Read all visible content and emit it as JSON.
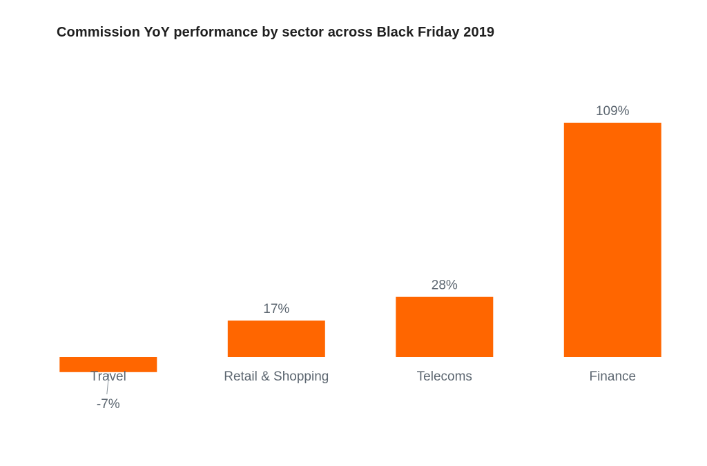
{
  "chart_data": {
    "type": "bar",
    "title": "Commission YoY performance by sector across Black Friday 2019",
    "categories": [
      "Travel",
      "Retail & Shopping",
      "Telecoms",
      "Finance"
    ],
    "values": [
      -7,
      17,
      28,
      109
    ],
    "value_labels": [
      "-7%",
      "17%",
      "28%",
      "109%"
    ],
    "unit": "%",
    "xlabel": "",
    "ylabel": "",
    "grid": false,
    "legend": "none",
    "bar_color": "#ff6600"
  }
}
